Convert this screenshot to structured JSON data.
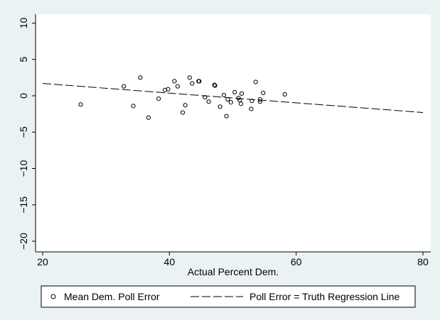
{
  "chart_data": {
    "type": "scatter",
    "title": "",
    "xlabel": "Actual Percent Dem.",
    "ylabel": "",
    "xlim": [
      20,
      80
    ],
    "ylim": [
      -20,
      10
    ],
    "x_ticks": [
      20,
      40,
      60,
      80
    ],
    "y_ticks": [
      -20,
      -15,
      -10,
      -5,
      0,
      5,
      10
    ],
    "grid": false,
    "legend_position": "bottom",
    "colors": {
      "background": "#eaf2f3",
      "plot_area": "#ffffff",
      "ink": "#000000"
    },
    "series": [
      {
        "name": "Mean Dem. Poll Error",
        "type": "scatter",
        "marker": "hollow-circle",
        "points": [
          [
            26,
            -1.2
          ],
          [
            32.8,
            1.3
          ],
          [
            34.3,
            -1.4
          ],
          [
            35.4,
            2.5
          ],
          [
            36.7,
            -3.0
          ],
          [
            38.3,
            -0.4
          ],
          [
            39.3,
            0.8
          ],
          [
            39.8,
            0.9
          ],
          [
            40.8,
            2.0
          ],
          [
            41.3,
            1.3
          ],
          [
            42.1,
            -2.3
          ],
          [
            42.5,
            -1.3
          ],
          [
            43.2,
            2.5
          ],
          [
            43.6,
            1.7
          ],
          [
            44.6,
            2.0
          ],
          [
            44.7,
            2.0
          ],
          [
            45.6,
            -0.2
          ],
          [
            46.2,
            -0.8
          ],
          [
            47.1,
            1.5
          ],
          [
            47.2,
            1.4
          ],
          [
            48,
            -1.5
          ],
          [
            48.6,
            0.1
          ],
          [
            49,
            -2.8
          ],
          [
            49.2,
            -0.5
          ],
          [
            49.7,
            -0.9
          ],
          [
            50.3,
            0.5
          ],
          [
            50.9,
            -0.3
          ],
          [
            51.1,
            -0.6
          ],
          [
            51.3,
            -1.1
          ],
          [
            51.4,
            0.3
          ],
          [
            52.9,
            -1.8
          ],
          [
            53,
            -0.7
          ],
          [
            53.6,
            1.9
          ],
          [
            54.3,
            -0.8
          ],
          [
            54.3,
            -0.5
          ],
          [
            54.8,
            0.4
          ],
          [
            58.2,
            0.2
          ]
        ]
      },
      {
        "name": "Poll Error = Truth Regression Line",
        "type": "line",
        "style": "dashed",
        "points": [
          [
            20,
            1.7
          ],
          [
            80,
            -2.3
          ]
        ]
      }
    ]
  }
}
